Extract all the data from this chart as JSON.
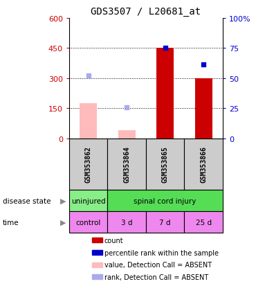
{
  "title": "GDS3507 / L20681_at",
  "samples": [
    "GSM353862",
    "GSM353864",
    "GSM353865",
    "GSM353866"
  ],
  "x_positions": [
    0,
    1,
    2,
    3
  ],
  "left_ylim": [
    0,
    600
  ],
  "left_yticks": [
    0,
    150,
    300,
    450,
    600
  ],
  "right_ylim": [
    0,
    100
  ],
  "right_yticks": [
    0,
    25,
    50,
    75,
    100
  ],
  "right_yticklabels": [
    "0",
    "25",
    "50",
    "75",
    "100%"
  ],
  "left_tick_color": "#cc0000",
  "right_tick_color": "#0000cc",
  "bar_values_absent": [
    175,
    40,
    0,
    0
  ],
  "bar_values_present": [
    0,
    0,
    450,
    300
  ],
  "scatter_rank_absent": [
    315,
    155,
    0,
    0
  ],
  "scatter_rank_present": [
    0,
    0,
    450,
    370
  ],
  "scatter_rank_absent_color": "#aaaaee",
  "scatter_rank_present_color": "#0000cc",
  "disease_uninjured_color": "#88ee88",
  "disease_injury_color": "#55dd55",
  "time_color": "#ee88ee",
  "gray_bg": "#cccccc",
  "legend_items": [
    {
      "color": "#cc0000",
      "label": "count"
    },
    {
      "color": "#0000cc",
      "label": "percentile rank within the sample"
    },
    {
      "color": "#ffbbbb",
      "label": "value, Detection Call = ABSENT"
    },
    {
      "color": "#aaaaee",
      "label": "rank, Detection Call = ABSENT"
    }
  ]
}
